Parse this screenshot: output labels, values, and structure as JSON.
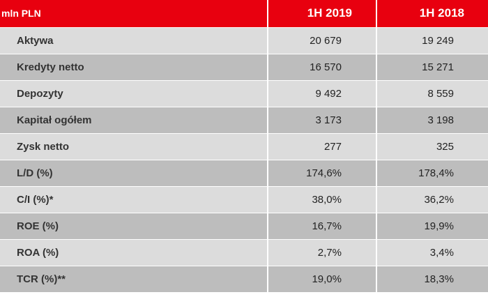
{
  "header": {
    "unit_label": "mln PLN",
    "col_1h2019": "1H 2019",
    "col_1h2018": "1H 2018"
  },
  "colors": {
    "header_bg": "#e8000f",
    "row_light": "#dcdcdc",
    "row_dark": "#bdbdbd"
  },
  "rows": [
    {
      "label": "Aktywa",
      "v2019": "20 679",
      "v2018": "19 249"
    },
    {
      "label": "Kredyty netto",
      "v2019": "16 570",
      "v2018": "15 271"
    },
    {
      "label": "Depozyty",
      "v2019": "9 492",
      "v2018": "8 559"
    },
    {
      "label": "Kapitał ogółem",
      "v2019": "3 173",
      "v2018": "3 198"
    },
    {
      "label": "Zysk netto",
      "v2019": "277",
      "v2018": "325"
    },
    {
      "label": "L/D (%)",
      "v2019": "174,6%",
      "v2018": "178,4%"
    },
    {
      "label": "C/I (%)*",
      "v2019": "38,0%",
      "v2018": "36,2%"
    },
    {
      "label": "ROE (%)",
      "v2019": "16,7%",
      "v2018": "19,9%"
    },
    {
      "label": "ROA (%)",
      "v2019": "2,7%",
      "v2018": "3,4%"
    },
    {
      "label": "TCR (%)**",
      "v2019": "19,0%",
      "v2018": "18,3%"
    }
  ]
}
